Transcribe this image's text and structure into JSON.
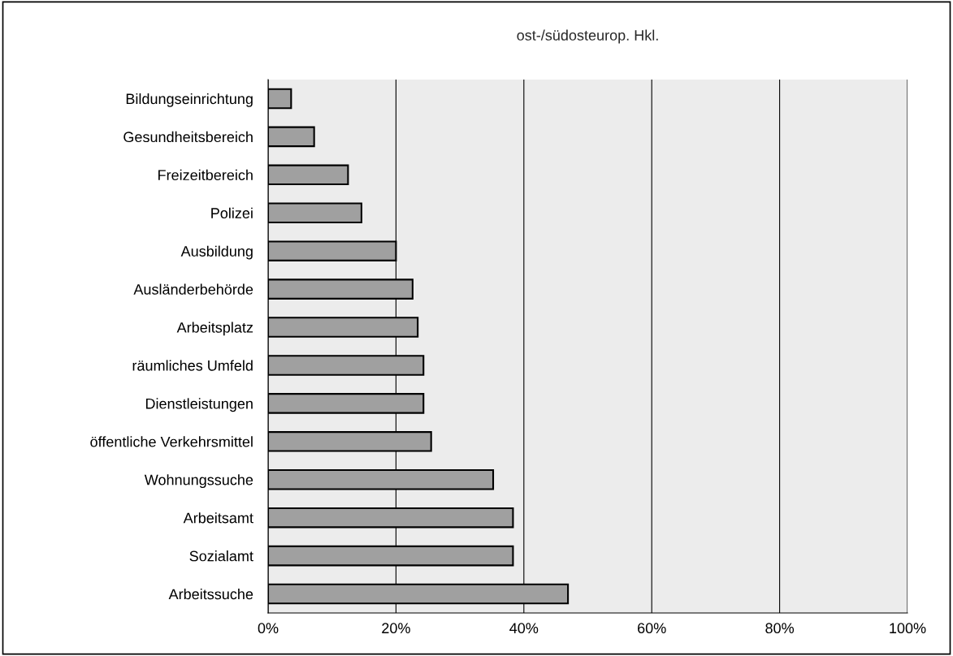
{
  "chart_data": {
    "type": "bar",
    "orientation": "horizontal",
    "title": "ost-/südosteurop. Hkl.",
    "categories": [
      "Bildungseinrichtung",
      "Gesundheitsbereich",
      "Freizeitbereich",
      "Polizei",
      "Ausbildung",
      "Ausländerbehörde",
      "Arbeitsplatz",
      "räumliches Umfeld",
      "Dienstleistungen",
      "öffentliche Verkehrsmittel",
      "Wohnungssuche",
      "Arbeitsamt",
      "Sozialamt",
      "Arbeitssuche"
    ],
    "values": [
      3.6,
      7.2,
      12.5,
      14.6,
      20.0,
      22.6,
      23.4,
      24.3,
      24.3,
      25.5,
      35.2,
      38.3,
      38.3,
      46.9
    ],
    "color": "#a0a0a0",
    "xlim": [
      0,
      100
    ],
    "xticks": [
      {
        "value": 0,
        "label": "0%"
      },
      {
        "value": 20,
        "label": "20%"
      },
      {
        "value": 40,
        "label": "40%"
      },
      {
        "value": 60,
        "label": "60%"
      },
      {
        "value": 80,
        "label": "80%"
      },
      {
        "value": 100,
        "label": "100%"
      }
    ],
    "grid": "x",
    "legend": false
  }
}
